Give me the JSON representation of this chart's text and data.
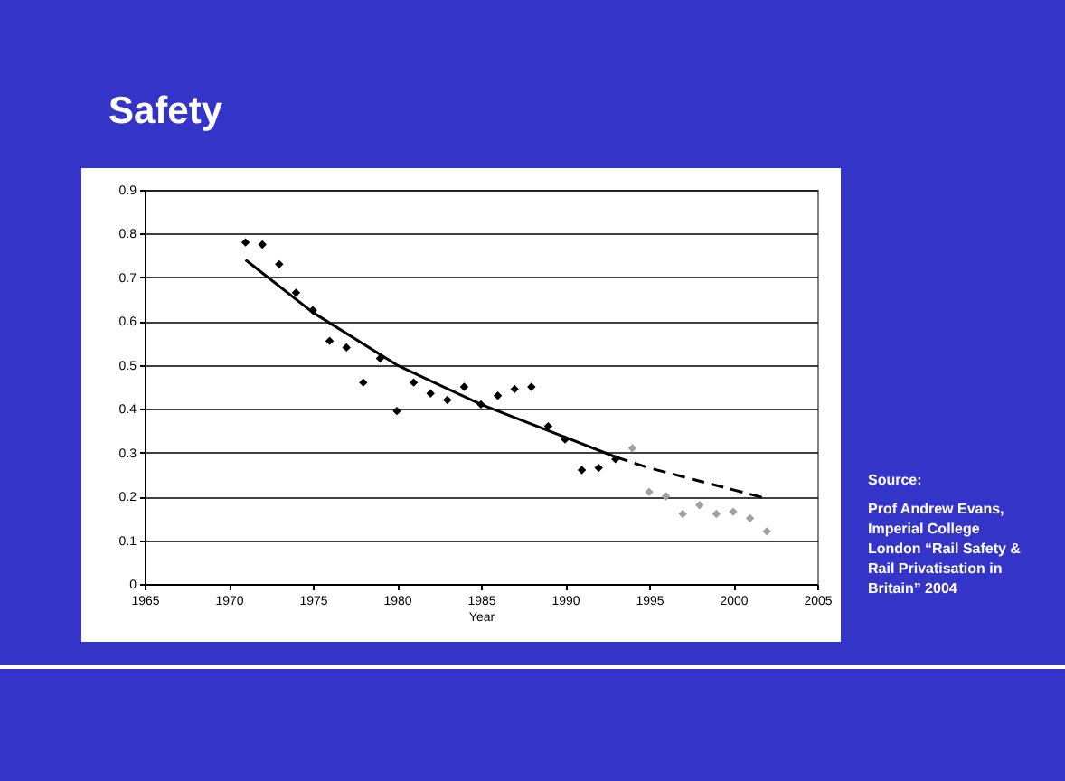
{
  "chart_data": {
    "type": "scatter",
    "title": "Safety",
    "xlabel": "Year",
    "xlim": [
      1965,
      2005
    ],
    "xticks": [
      1965,
      1970,
      1975,
      1980,
      1985,
      1990,
      1995,
      2000,
      2005
    ],
    "ylim": [
      0,
      0.9
    ],
    "yticks": [
      0,
      0.1,
      0.2,
      0.3,
      0.4,
      0.5,
      0.6,
      0.7,
      0.8,
      0.9
    ],
    "grid": "y",
    "annotations": [
      "Source:",
      "Prof Andrew Evans, Imperial College London “Rail Safety & Rail Privatisation in Britain” 2004"
    ],
    "series": [
      {
        "marker": "diamond",
        "color": "#000000",
        "x": [
          1971,
          1972,
          1973,
          1974,
          1975,
          1976,
          1977,
          1978,
          1979,
          1980,
          1981,
          1982,
          1983,
          1984,
          1985,
          1986,
          1987,
          1988,
          1989,
          1990,
          1991,
          1992,
          1993
        ],
        "values": [
          0.78,
          0.775,
          0.73,
          0.665,
          0.625,
          0.555,
          0.54,
          0.46,
          0.515,
          0.395,
          0.46,
          0.435,
          0.42,
          0.45,
          0.41,
          0.43,
          0.445,
          0.45,
          0.36,
          0.33,
          0.26,
          0.265,
          0.285
        ]
      },
      {
        "marker": "diamond",
        "color": "#a0a0a0",
        "x": [
          1994,
          1995,
          1996,
          1997,
          1998,
          1999,
          2000,
          2001,
          2002
        ],
        "values": [
          0.31,
          0.21,
          0.2,
          0.16,
          0.18,
          0.16,
          0.165,
          0.15,
          0.12
        ]
      },
      {
        "type": "line",
        "color": "#000000",
        "line_style": "solid",
        "x": [
          1971,
          1975,
          1980,
          1985,
          1990,
          1993
        ],
        "values": [
          0.74,
          0.62,
          0.5,
          0.41,
          0.335,
          0.29
        ]
      },
      {
        "type": "line",
        "color": "#000000",
        "line_style": "dashed",
        "x": [
          1993,
          1995,
          2000,
          2002
        ],
        "values": [
          0.29,
          0.265,
          0.215,
          0.195
        ]
      }
    ]
  }
}
